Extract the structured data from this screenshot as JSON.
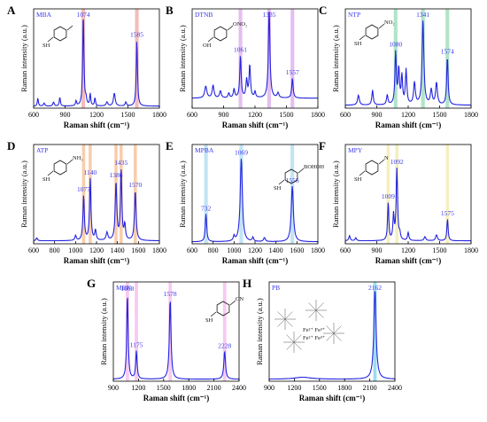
{
  "figure": {
    "common": {
      "ylabel": "Raman intensity (a.u.)",
      "xlabel": "Raman shift (cm⁻¹)"
    }
  },
  "chart_data": [
    {
      "letter": "A",
      "name": "MBA",
      "type": "line",
      "xlim": [
        600,
        1800
      ],
      "xticks": [
        600,
        900,
        1200,
        1500,
        1800
      ],
      "ylim": [
        0,
        1
      ],
      "bands": [
        {
          "center": 1074,
          "width": 35,
          "color": "#f0a0a0"
        },
        {
          "center": 1585,
          "width": 35,
          "color": "#f0a0a0"
        }
      ],
      "labels": [
        {
          "x": 1074,
          "text": "1074"
        },
        {
          "x": 1585,
          "text": "1585"
        }
      ],
      "peaks": [
        [
          640,
          0.08,
          6
        ],
        [
          700,
          0.03,
          8
        ],
        [
          790,
          0.04,
          8
        ],
        [
          850,
          0.09,
          6
        ],
        [
          1005,
          0.05,
          6
        ],
        [
          1074,
          0.93,
          7
        ],
        [
          1100,
          0.06,
          7
        ],
        [
          1140,
          0.12,
          6
        ],
        [
          1185,
          0.08,
          6
        ],
        [
          1300,
          0.04,
          10
        ],
        [
          1370,
          0.13,
          10
        ],
        [
          1480,
          0.04,
          8
        ],
        [
          1585,
          0.66,
          7
        ]
      ],
      "baseline": 0.02,
      "molecule": "MBA",
      "mol_groups": [
        "SH"
      ]
    },
    {
      "letter": "B",
      "name": "DTNB",
      "type": "line",
      "xlim": [
        600,
        1800
      ],
      "xticks": [
        600,
        900,
        1200,
        1500,
        1800
      ],
      "ylim": [
        0,
        1
      ],
      "bands": [
        {
          "center": 1061,
          "width": 35,
          "color": "#d8a4e8"
        },
        {
          "center": 1335,
          "width": 35,
          "color": "#d8a4e8"
        },
        {
          "center": 1557,
          "width": 35,
          "color": "#d8a4e8"
        }
      ],
      "labels": [
        {
          "x": 1061,
          "text": "1061"
        },
        {
          "x": 1335,
          "text": "1335"
        },
        {
          "x": 1557,
          "text": "1557"
        }
      ],
      "peaks": [
        [
          730,
          0.12,
          12
        ],
        [
          800,
          0.13,
          10
        ],
        [
          870,
          0.07,
          10
        ],
        [
          950,
          0.05,
          8
        ],
        [
          1000,
          0.09,
          8
        ],
        [
          1061,
          0.42,
          8
        ],
        [
          1120,
          0.18,
          8
        ],
        [
          1150,
          0.33,
          8
        ],
        [
          1200,
          0.06,
          8
        ],
        [
          1335,
          0.88,
          9
        ],
        [
          1420,
          0.05,
          10
        ],
        [
          1557,
          0.2,
          8
        ]
      ],
      "baseline": 0.1,
      "molecule": "DTNB",
      "mol_groups": [
        "OH",
        "O",
        "NO₂"
      ]
    },
    {
      "letter": "C",
      "name": "NTP",
      "type": "line",
      "xlim": [
        600,
        1800
      ],
      "xticks": [
        600,
        900,
        1200,
        1500,
        1800
      ],
      "ylim": [
        0,
        1
      ],
      "bands": [
        {
          "center": 1080,
          "width": 35,
          "color": "#8fd8b0"
        },
        {
          "center": 1341,
          "width": 35,
          "color": "#8fd8b0"
        },
        {
          "center": 1574,
          "width": 35,
          "color": "#8fd8b0"
        }
      ],
      "labels": [
        {
          "x": 1080,
          "text": "1080"
        },
        {
          "x": 1341,
          "text": "1341"
        },
        {
          "x": 1574,
          "text": "1574"
        }
      ],
      "peaks": [
        [
          725,
          0.1,
          10
        ],
        [
          860,
          0.15,
          8
        ],
        [
          1000,
          0.1,
          8
        ],
        [
          1080,
          0.52,
          8
        ],
        [
          1110,
          0.35,
          8
        ],
        [
          1140,
          0.28,
          8
        ],
        [
          1180,
          0.35,
          8
        ],
        [
          1260,
          0.22,
          10
        ],
        [
          1341,
          0.85,
          10
        ],
        [
          1420,
          0.15,
          10
        ],
        [
          1470,
          0.22,
          10
        ],
        [
          1574,
          0.48,
          8
        ]
      ],
      "baseline": 0.03,
      "molecule": "NTP",
      "mol_groups": [
        "SH",
        "NO₂"
      ]
    },
    {
      "letter": "D",
      "name": "ATP",
      "type": "line",
      "xlim": [
        600,
        1800
      ],
      "xticks": [
        600,
        800,
        1000,
        1200,
        1400,
        1600,
        1800
      ],
      "ylim": [
        0,
        1
      ],
      "bands": [
        {
          "center": 1077,
          "width": 30,
          "color": "#f5b889"
        },
        {
          "center": 1140,
          "width": 30,
          "color": "#f5b889"
        },
        {
          "center": 1386,
          "width": 30,
          "color": "#f5b889"
        },
        {
          "center": 1435,
          "width": 30,
          "color": "#f5b889"
        },
        {
          "center": 1570,
          "width": 30,
          "color": "#f5b889"
        }
      ],
      "labels": [
        {
          "x": 1077,
          "text": "1077"
        },
        {
          "x": 1140,
          "text": "1140"
        },
        {
          "x": 1386,
          "text": "1386"
        },
        {
          "x": 1435,
          "text": "1435"
        },
        {
          "x": 1570,
          "text": "1570"
        }
      ],
      "peaks": [
        [
          630,
          0.03,
          8
        ],
        [
          1000,
          0.05,
          8
        ],
        [
          1077,
          0.45,
          8
        ],
        [
          1140,
          0.62,
          8
        ],
        [
          1190,
          0.1,
          8
        ],
        [
          1300,
          0.08,
          10
        ],
        [
          1386,
          0.58,
          9
        ],
        [
          1435,
          0.7,
          8
        ],
        [
          1470,
          0.15,
          8
        ],
        [
          1570,
          0.5,
          9
        ]
      ],
      "baseline": 0.03,
      "molecule": "ATP",
      "mol_groups": [
        "SH",
        "NH₂"
      ]
    },
    {
      "letter": "E",
      "name": "MPBA",
      "type": "line",
      "xlim": [
        600,
        1800
      ],
      "xticks": [
        600,
        800,
        1000,
        1200,
        1400,
        1600,
        1800
      ],
      "ylim": [
        0,
        1
      ],
      "bands": [
        {
          "center": 732,
          "width": 35,
          "color": "#a8d8ef"
        },
        {
          "center": 1069,
          "width": 35,
          "color": "#a8d8ef"
        },
        {
          "center": 1556,
          "width": 35,
          "color": "#a8d8ef"
        }
      ],
      "labels": [
        {
          "x": 732,
          "text": "732"
        },
        {
          "x": 1069,
          "text": "1069"
        },
        {
          "x": 1556,
          "text": "1556"
        }
      ],
      "peaks": [
        [
          732,
          0.28,
          8
        ],
        [
          1000,
          0.05,
          8
        ],
        [
          1069,
          0.84,
          12
        ],
        [
          1180,
          0.04,
          8
        ],
        [
          1290,
          0.04,
          10
        ],
        [
          1556,
          0.56,
          12
        ]
      ],
      "baseline": 0.02,
      "molecule": "MPBA",
      "mol_groups": [
        "SH",
        "B",
        "OH",
        "OH"
      ]
    },
    {
      "letter": "F",
      "name": "MPY",
      "type": "line",
      "xlim": [
        600,
        1800
      ],
      "xticks": [
        600,
        900,
        1200,
        1500,
        1800
      ],
      "ylim": [
        0,
        1
      ],
      "bands": [
        {
          "center": 1009,
          "width": 30,
          "color": "#f2e8a0"
        },
        {
          "center": 1092,
          "width": 30,
          "color": "#f2e8a0"
        },
        {
          "center": 1575,
          "width": 30,
          "color": "#f2e8a0"
        }
      ],
      "labels": [
        {
          "x": 1009,
          "text": "1009"
        },
        {
          "x": 1092,
          "text": "1092"
        },
        {
          "x": 1575,
          "text": "1575"
        }
      ],
      "peaks": [
        [
          640,
          0.05,
          8
        ],
        [
          700,
          0.03,
          8
        ],
        [
          1009,
          0.38,
          7
        ],
        [
          1060,
          0.25,
          7
        ],
        [
          1092,
          0.72,
          8
        ],
        [
          1120,
          0.06,
          7
        ],
        [
          1200,
          0.08,
          8
        ],
        [
          1360,
          0.04,
          10
        ],
        [
          1470,
          0.06,
          10
        ],
        [
          1575,
          0.22,
          7
        ]
      ],
      "baseline": 0.03,
      "molecule": "MPY",
      "mol_groups": [
        "SH",
        "N"
      ]
    },
    {
      "letter": "G",
      "name": "MBN",
      "type": "line",
      "xlim": [
        900,
        2400
      ],
      "xticks": [
        900,
        1200,
        1500,
        1800,
        2100,
        2400
      ],
      "ylim": [
        0,
        1
      ],
      "bands": [
        {
          "center": 1068,
          "width": 40,
          "color": "#f4b4ea"
        },
        {
          "center": 1175,
          "width": 40,
          "color": "#f4b4ea"
        },
        {
          "center": 1578,
          "width": 40,
          "color": "#f4b4ea"
        },
        {
          "center": 2228,
          "width": 40,
          "color": "#f4b4ea"
        }
      ],
      "labels": [
        {
          "x": 1068,
          "text": "1068"
        },
        {
          "x": 1175,
          "text": "1175"
        },
        {
          "x": 1578,
          "text": "1578"
        },
        {
          "x": 2228,
          "text": "2228"
        }
      ],
      "peaks": [
        [
          1068,
          0.85,
          10
        ],
        [
          1175,
          0.28,
          10
        ],
        [
          1578,
          0.8,
          12
        ],
        [
          2228,
          0.28,
          12
        ]
      ],
      "baseline": 0.02,
      "molecule": "MBN",
      "mol_groups": [
        "SH",
        "C",
        "N"
      ]
    },
    {
      "letter": "H",
      "name": "PB",
      "type": "line",
      "xlim": [
        900,
        2400
      ],
      "xticks": [
        900,
        1200,
        1500,
        1800,
        2100,
        2400
      ],
      "ylim": [
        0,
        1
      ],
      "bands": [
        {
          "center": 2162,
          "width": 40,
          "color": "#6ecfe8"
        }
      ],
      "labels": [
        {
          "x": 2162,
          "text": "2162"
        }
      ],
      "peaks": [
        [
          2162,
          0.9,
          16
        ],
        [
          1300,
          0.02,
          120
        ]
      ],
      "baseline": 0.02,
      "molecule": "PB",
      "mol_groups": [
        "Fe²⁺",
        "Fe³⁺",
        "Fe²⁺",
        "Fe³⁺"
      ]
    }
  ],
  "colors": {
    "spectrum": "#2323e0",
    "label": "#3a3aee",
    "axis": "#000000"
  }
}
